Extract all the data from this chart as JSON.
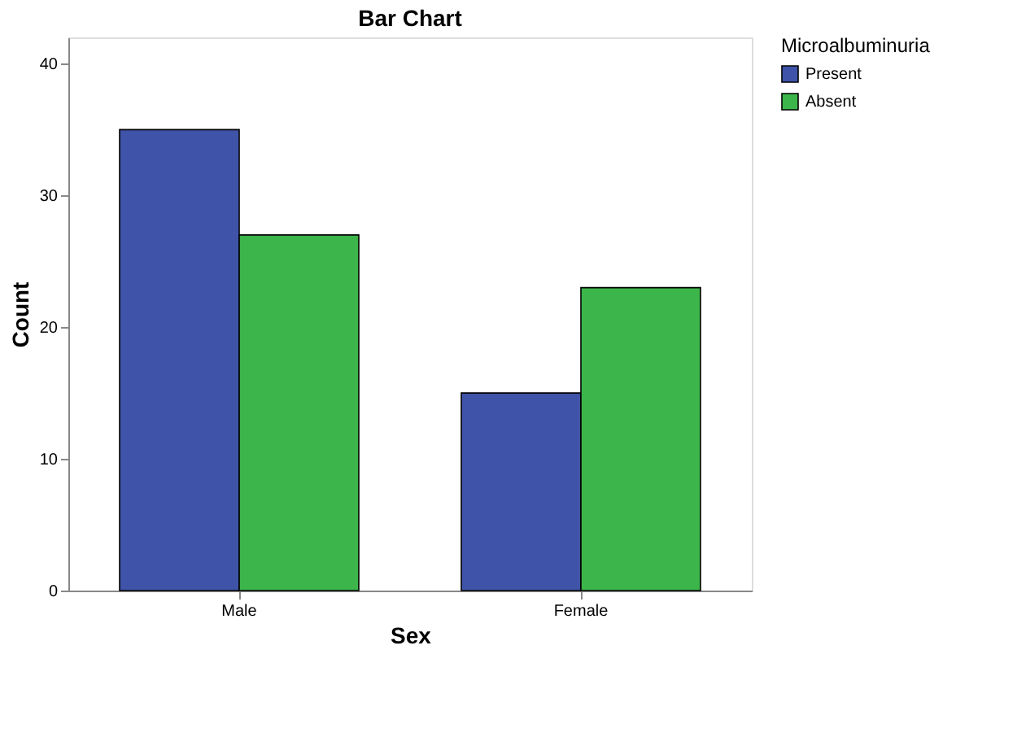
{
  "chart_data": {
    "type": "bar",
    "title": "Bar Chart",
    "xlabel": "Sex",
    "ylabel": "Count",
    "legend_title": "Microalbuminuria",
    "categories": [
      "Male",
      "Female"
    ],
    "series": [
      {
        "name": "Present",
        "color": "#3f54a8",
        "values": [
          35,
          15
        ]
      },
      {
        "name": "Absent",
        "color": "#3cb54a",
        "values": [
          27,
          23
        ]
      }
    ],
    "ylim": [
      0,
      42
    ],
    "yticks": [
      0,
      10,
      20,
      30,
      40
    ],
    "grid": false,
    "legend": "top right"
  }
}
